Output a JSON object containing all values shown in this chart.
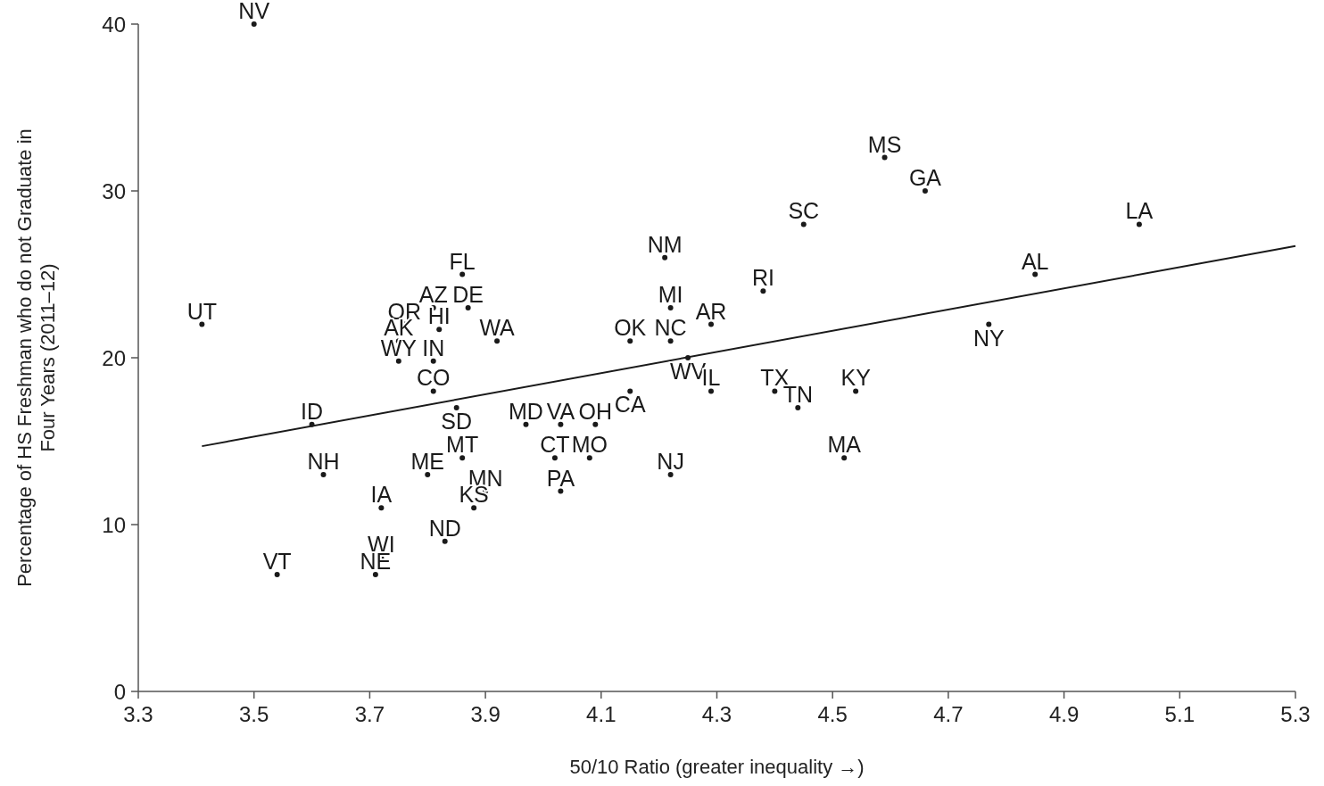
{
  "chart_data": {
    "type": "scatter",
    "xlabel": "50/10 Ratio (greater inequality →)",
    "ylabel": "Percentage of HS Freshman who do not Graduate in Four Years (2011–12)",
    "xlim": [
      3.3,
      5.3
    ],
    "ylim": [
      0,
      40
    ],
    "xticks": [
      3.3,
      3.5,
      3.7,
      3.9,
      4.1,
      4.3,
      4.5,
      4.7,
      4.9,
      5.1,
      5.3
    ],
    "yticks": [
      0,
      10,
      20,
      30,
      40
    ],
    "grid": false,
    "series": [
      {
        "marker": "circle",
        "color": "#1a1a1a",
        "x": [
          3.5,
          3.41,
          4.59,
          4.66,
          4.45,
          5.03,
          4.21,
          4.85,
          4.38,
          3.86,
          3.81,
          3.87,
          4.22,
          4.77,
          4.29,
          3.76,
          3.82,
          3.75,
          3.92,
          4.15,
          4.22,
          4.25,
          3.75,
          3.81,
          3.81,
          4.15,
          4.29,
          4.4,
          4.54,
          4.44,
          3.85,
          3.6,
          3.97,
          4.03,
          4.09,
          3.86,
          4.02,
          4.08,
          4.52,
          3.62,
          3.8,
          4.22,
          3.9,
          4.03,
          3.88,
          3.72,
          3.83,
          3.72,
          3.54,
          3.71
        ],
        "values": [
          40,
          22,
          32,
          30,
          28,
          28,
          26,
          25,
          24,
          25,
          23,
          23,
          23,
          22,
          22,
          22,
          21.7,
          21,
          21,
          21,
          21,
          20,
          19.8,
          19.8,
          18,
          18,
          18,
          18,
          18,
          17,
          17,
          16,
          16,
          16,
          16,
          14,
          14,
          14,
          14,
          13,
          13,
          13,
          12,
          12,
          11,
          11,
          9,
          8,
          7,
          7
        ],
        "value_labels": [
          "NV",
          "UT",
          "MS",
          "GA",
          "SC",
          "LA",
          "NM",
          "AL",
          "RI",
          "FL",
          "AZ",
          "DE",
          "MI",
          "NY",
          "AR",
          "OR",
          "HI",
          "AK",
          "WA",
          "OK",
          "NC",
          "WV",
          "WY",
          "IN",
          "CO",
          "CA",
          "IL",
          "TX",
          "KY",
          "TN",
          "SD",
          "ID",
          "MD",
          "VA",
          "OH",
          "MT",
          "CT",
          "MO",
          "MA",
          "NH",
          "ME",
          "NJ",
          "MN",
          "PA",
          "KS",
          "IA",
          "ND",
          "WI",
          "VT",
          "NE"
        ]
      },
      {
        "type": "line",
        "color": "#1a1a1a",
        "line_style": "solid",
        "marker": "none",
        "x": [
          3.41,
          5.3
        ],
        "values": [
          14.7,
          26.7
        ]
      }
    ]
  }
}
